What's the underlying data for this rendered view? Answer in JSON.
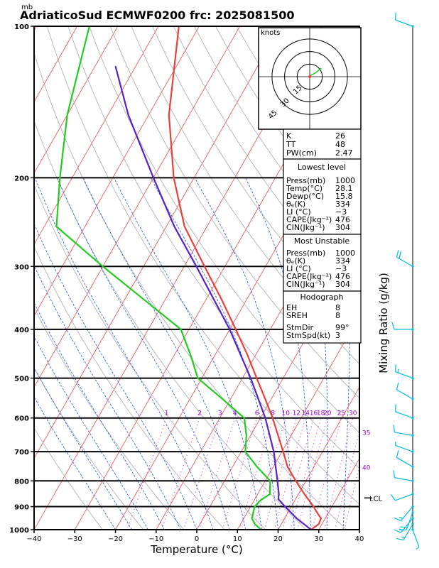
{
  "chart_data": {
    "type": "skewt",
    "title": "AdriaticoSud ECMWF0200 frc: 2025081500",
    "y_unit": "mb",
    "xlabel": "Temperature (°C)",
    "right_label": "Mixing Ratio (g/kg)",
    "xlim": [
      -40,
      40
    ],
    "ylim": [
      1000,
      100
    ],
    "x_ticks": [
      -40,
      -30,
      -20,
      -10,
      0,
      10,
      20,
      30,
      40
    ],
    "p_ticks": [
      100,
      200,
      300,
      400,
      500,
      600,
      700,
      800,
      900,
      1000
    ],
    "p_tick_labels": [
      "100",
      "200",
      "300",
      "400",
      "500",
      "600",
      "700",
      "800",
      "900",
      "1000"
    ],
    "mixing_ratio_labels": [
      {
        "label": "1",
        "w": 1
      },
      {
        "label": "2",
        "w": 2
      },
      {
        "label": "3",
        "w": 3
      },
      {
        "label": "4",
        "w": 4
      },
      {
        "label": "6",
        "w": 6
      },
      {
        "label": "8",
        "w": 8
      },
      {
        "label": "10",
        "w": 10
      },
      {
        "label": "12",
        "w": 12
      },
      {
        "label": "14",
        "w": 14
      },
      {
        "label": "16",
        "w": 16
      },
      {
        "label": "18",
        "w": 18
      },
      {
        "label": "20",
        "w": 20
      },
      {
        "label": "25",
        "w": 25
      },
      {
        "label": "30",
        "w": 30
      },
      {
        "label": "35",
        "w": 35
      },
      {
        "label": "40",
        "w": 40
      }
    ],
    "temperature": [
      {
        "p": 1000,
        "t": 28.1
      },
      {
        "p": 975,
        "t": 29.2
      },
      {
        "p": 950,
        "t": 29.0
      },
      {
        "p": 925,
        "t": 27.2
      },
      {
        "p": 900,
        "t": 25.5
      },
      {
        "p": 850,
        "t": 21.5
      },
      {
        "p": 800,
        "t": 17.5
      },
      {
        "p": 750,
        "t": 13.5
      },
      {
        "p": 700,
        "t": 10.3
      },
      {
        "p": 650,
        "t": 6.8
      },
      {
        "p": 600,
        "t": 3.0
      },
      {
        "p": 550,
        "t": -1.5
      },
      {
        "p": 500,
        "t": -6.5
      },
      {
        "p": 450,
        "t": -12.0
      },
      {
        "p": 400,
        "t": -18.5
      },
      {
        "p": 350,
        "t": -26.0
      },
      {
        "p": 300,
        "t": -35.0
      },
      {
        "p": 250,
        "t": -45.5
      },
      {
        "p": 200,
        "t": -55.0
      },
      {
        "p": 150,
        "t": -65.0
      },
      {
        "p": 100,
        "t": -75.0
      }
    ],
    "dewpoint": [
      {
        "p": 1000,
        "t": 15.8
      },
      {
        "p": 975,
        "t": 13.5
      },
      {
        "p": 950,
        "t": 12.0
      },
      {
        "p": 925,
        "t": 11.5
      },
      {
        "p": 900,
        "t": 11.0
      },
      {
        "p": 875,
        "t": 11.5
      },
      {
        "p": 850,
        "t": 13.0
      },
      {
        "p": 800,
        "t": 11.2
      },
      {
        "p": 750,
        "t": 6.0
      },
      {
        "p": 700,
        "t": 1.0
      },
      {
        "p": 650,
        "t": -1.0
      },
      {
        "p": 600,
        "t": -4.0
      },
      {
        "p": 550,
        "t": -12.0
      },
      {
        "p": 500,
        "t": -21.0
      },
      {
        "p": 450,
        "t": -26.0
      },
      {
        "p": 400,
        "t": -32.0
      },
      {
        "p": 350,
        "t": -45.0
      },
      {
        "p": 300,
        "t": -60.0
      },
      {
        "p": 250,
        "t": -77.0
      },
      {
        "p": 200,
        "t": -83.0
      },
      {
        "p": 150,
        "t": -90.0
      },
      {
        "p": 100,
        "t": -97.0
      }
    ],
    "parcel": [
      {
        "p": 1000,
        "t": 28.1
      },
      {
        "p": 950,
        "t": 23.0
      },
      {
        "p": 900,
        "t": 18.5
      },
      {
        "p": 870,
        "t": 15.8
      },
      {
        "p": 850,
        "t": 15.2
      },
      {
        "p": 800,
        "t": 13.0
      },
      {
        "p": 700,
        "t": 8.0
      },
      {
        "p": 600,
        "t": 1.2
      },
      {
        "p": 500,
        "t": -8.0
      },
      {
        "p": 400,
        "t": -20.0
      },
      {
        "p": 300,
        "t": -37.0
      },
      {
        "p": 250,
        "t": -48.0
      },
      {
        "p": 200,
        "t": -60.0
      },
      {
        "p": 150,
        "t": -75.0
      },
      {
        "p": 120,
        "t": -85.0
      }
    ],
    "lcl": {
      "label": "LCL",
      "p": 865
    },
    "hodograph": {
      "title": "knots",
      "ring_labels": [
        "15",
        "30",
        "45"
      ],
      "ring_values": [
        15,
        30,
        45
      ],
      "points": [
        [
          0,
          0
        ],
        [
          2,
          -2
        ],
        [
          6,
          -4
        ],
        [
          10,
          -7
        ],
        [
          12,
          -9
        ],
        [
          14,
          -10
        ]
      ]
    },
    "winds": [
      {
        "p": 1000,
        "dir": 160,
        "spd": 8
      },
      {
        "p": 975,
        "dir": 210,
        "spd": 15
      },
      {
        "p": 950,
        "dir": 220,
        "spd": 18
      },
      {
        "p": 925,
        "dir": 200,
        "spd": 20
      },
      {
        "p": 900,
        "dir": 220,
        "spd": 18
      },
      {
        "p": 850,
        "dir": 250,
        "spd": 10
      },
      {
        "p": 800,
        "dir": 280,
        "spd": 12
      },
      {
        "p": 750,
        "dir": 300,
        "spd": 10
      },
      {
        "p": 700,
        "dir": 290,
        "spd": 8
      },
      {
        "p": 650,
        "dir": 280,
        "spd": 10
      },
      {
        "p": 600,
        "dir": 290,
        "spd": 12
      },
      {
        "p": 550,
        "dir": 300,
        "spd": 12
      },
      {
        "p": 500,
        "dir": 290,
        "spd": 15
      },
      {
        "p": 400,
        "dir": 270,
        "spd": 12
      },
      {
        "p": 300,
        "dir": 300,
        "spd": 20
      },
      {
        "p": 100,
        "dir": 290,
        "spd": 12
      }
    ]
  },
  "indices": {
    "K": "26",
    "TT": "48",
    "PW": "2.47",
    "lowest_level": {
      "header": "Lowest level",
      "press": "1000",
      "temp": "28.1",
      "dewp": "15.8",
      "theta_e": "334",
      "li": "−3",
      "cape": "476",
      "cin": "304"
    },
    "most_unstable": {
      "header": "Most Unstable",
      "press": "1000",
      "theta_e": "334",
      "li": "−3",
      "cape": "476",
      "cin": "304"
    },
    "hodograph_box": {
      "header": "Hodograph",
      "eh": "8",
      "sreh": "8",
      "stmdir": "99°",
      "stmspd": "3"
    }
  },
  "labels": {
    "K": "K",
    "TT": "TT",
    "PW": "PW(cm)",
    "press": "Press(mb)",
    "temp": "Temp(°C)",
    "dewp": "Dewp(°C)",
    "theta_e": "θₑ(K)",
    "li": "LI (°C)",
    "cape": "CAPE(Jkg⁻¹)",
    "cin": "CIN(Jkg⁻¹)",
    "eh": "EH",
    "sreh": "SREH",
    "stmdir": "StmDir",
    "stmspd": "StmSpd(kt)"
  },
  "colors": {
    "temperature": "#e8403a",
    "dewpoint": "#22cc22",
    "parcel": "#5522cc",
    "isotherm": "#ee3333",
    "dry_adiabat": "#aaaaaa",
    "moist_adiabat": "#2255dd",
    "mixing_ratio": "#cc44cc",
    "wind": "#00bbdd",
    "mixing_label": "#9900cc"
  }
}
